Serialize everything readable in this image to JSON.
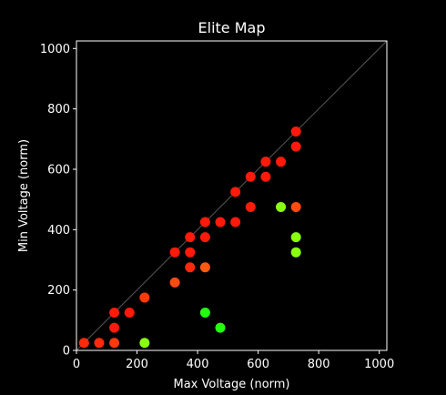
{
  "chart_data": {
    "type": "scatter",
    "title": "Elite Map",
    "xlabel": "Max Voltage (norm)",
    "ylabel": "Min Voltage (norm)",
    "xlim": [
      0,
      1025
    ],
    "ylim": [
      0,
      1025
    ],
    "x_ticks": [
      0,
      200,
      400,
      600,
      800,
      1000
    ],
    "y_ticks": [
      0,
      200,
      400,
      600,
      800,
      1000
    ],
    "grid": false,
    "background": "#000000",
    "reference_line": {
      "from": [
        0,
        0
      ],
      "to": [
        1025,
        1025
      ],
      "color": "#555555"
    },
    "points": [
      {
        "x": 25,
        "y": 25,
        "color": "#ff2a0a"
      },
      {
        "x": 75,
        "y": 25,
        "color": "#ff2a0a"
      },
      {
        "x": 125,
        "y": 25,
        "color": "#ff3a0a"
      },
      {
        "x": 125,
        "y": 75,
        "color": "#ff1a0a"
      },
      {
        "x": 125,
        "y": 125,
        "color": "#ff1a0a"
      },
      {
        "x": 175,
        "y": 125,
        "color": "#ff1a0a"
      },
      {
        "x": 225,
        "y": 175,
        "color": "#ff3a0a"
      },
      {
        "x": 225,
        "y": 25,
        "color": "#88ff11"
      },
      {
        "x": 325,
        "y": 225,
        "color": "#ff4a10"
      },
      {
        "x": 325,
        "y": 325,
        "color": "#ff1a0a"
      },
      {
        "x": 375,
        "y": 275,
        "color": "#ff2a0a"
      },
      {
        "x": 375,
        "y": 325,
        "color": "#ff1a0a"
      },
      {
        "x": 375,
        "y": 375,
        "color": "#ff1a0a"
      },
      {
        "x": 425,
        "y": 275,
        "color": "#ff5a10"
      },
      {
        "x": 425,
        "y": 375,
        "color": "#ff1a0a"
      },
      {
        "x": 425,
        "y": 425,
        "color": "#ff1a0a"
      },
      {
        "x": 425,
        "y": 125,
        "color": "#22ff11"
      },
      {
        "x": 475,
        "y": 425,
        "color": "#ff1a0a"
      },
      {
        "x": 475,
        "y": 75,
        "color": "#22ff11"
      },
      {
        "x": 525,
        "y": 425,
        "color": "#ff1a0a"
      },
      {
        "x": 525,
        "y": 525,
        "color": "#ff1a0a"
      },
      {
        "x": 575,
        "y": 475,
        "color": "#ff1a0a"
      },
      {
        "x": 575,
        "y": 575,
        "color": "#ff1a0a"
      },
      {
        "x": 625,
        "y": 575,
        "color": "#ff1a0a"
      },
      {
        "x": 625,
        "y": 625,
        "color": "#ff1a0a"
      },
      {
        "x": 675,
        "y": 625,
        "color": "#ff1a0a"
      },
      {
        "x": 675,
        "y": 475,
        "color": "#88ff11"
      },
      {
        "x": 725,
        "y": 475,
        "color": "#ff4a10"
      },
      {
        "x": 725,
        "y": 675,
        "color": "#ff1a0a"
      },
      {
        "x": 725,
        "y": 725,
        "color": "#ff1a0a"
      },
      {
        "x": 725,
        "y": 375,
        "color": "#88ff11"
      },
      {
        "x": 725,
        "y": 325,
        "color": "#88ff11"
      }
    ]
  }
}
